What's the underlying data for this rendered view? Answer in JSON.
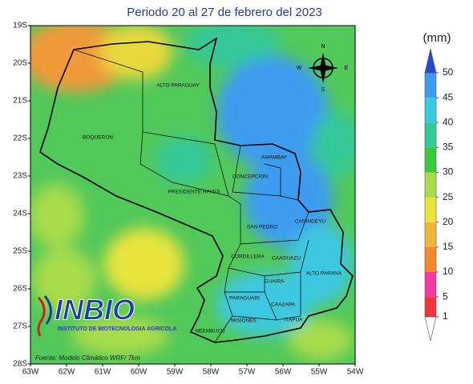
{
  "title": "Periodo 20 al 27 de febrero del 2023",
  "lat_labels": [
    "19S",
    "20S",
    "21S",
    "22S",
    "23S",
    "24S",
    "25S",
    "26S",
    "27S",
    "28S"
  ],
  "lon_labels": [
    "63W",
    "62W",
    "61W",
    "60W",
    "59W",
    "58W",
    "57W",
    "56W",
    "55W",
    "54W"
  ],
  "departments": [
    "ALTO PARAGUAY",
    "BOQUERON",
    "AMAMBAY",
    "CONCEPCION",
    "PRESIDENTE HAYES",
    "CANINDEYU",
    "SAN PEDRO",
    "CORDILLERA",
    "CAAGUAZU",
    "ALTO PARANA",
    "GUAIRA",
    "PARAGUARI",
    "CAAZAPA",
    "MISIONES",
    "ITAPUA",
    "NEEMBUCU"
  ],
  "compass": {
    "north": "N",
    "south": "S",
    "east": "E",
    "west": "W"
  },
  "logo": {
    "name": "INBIO",
    "subtitle": "INSTITUTO DE BIOTECNOLOGIA AGRICOLA"
  },
  "source": "Fuente: Modelo Climático WRF/ 7km",
  "legend": {
    "unit": "(mm)",
    "ticks": [
      1,
      5,
      10,
      15,
      20,
      25,
      30,
      35,
      40,
      45,
      50
    ],
    "colors": [
      "#ffffff",
      "#f0343c",
      "#f03c9c",
      "#f08a2c",
      "#f0b43c",
      "#e8e43c",
      "#a8dc4c",
      "#3cc83c",
      "#34c898",
      "#3cc8e0",
      "#3c9cf0",
      "#2848d8"
    ]
  }
}
